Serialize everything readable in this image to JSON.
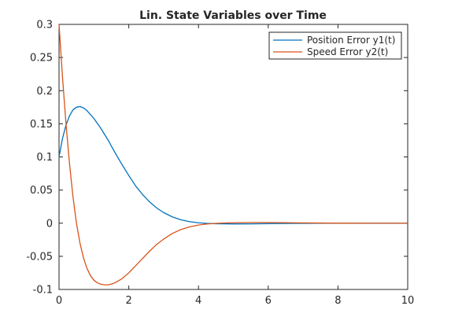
{
  "chart_data": {
    "type": "line",
    "title": "Lin. State Variables over Time",
    "xlabel": "",
    "ylabel": "",
    "xlim": [
      0,
      10
    ],
    "ylim": [
      -0.1,
      0.3
    ],
    "xticks": [
      0,
      2,
      4,
      6,
      8,
      10
    ],
    "yticks": [
      -0.1,
      -0.05,
      0,
      0.05,
      0.1,
      0.15,
      0.2,
      0.25,
      0.3
    ],
    "xtick_labels": [
      "0",
      "2",
      "4",
      "6",
      "8",
      "10"
    ],
    "ytick_labels": [
      "-0.1",
      "-0.05",
      "0",
      "0.05",
      "0.1",
      "0.15",
      "0.2",
      "0.25",
      "0.3"
    ],
    "grid": false,
    "legend_position": "top-right",
    "series": [
      {
        "name": "Position Error y1(t)",
        "color": "#0072BD",
        "x": [
          0,
          0.1,
          0.2,
          0.3,
          0.4,
          0.5,
          0.6,
          0.7,
          0.8,
          1.0,
          1.2,
          1.4,
          1.6,
          1.8,
          2.0,
          2.2,
          2.4,
          2.6,
          2.8,
          3.0,
          3.25,
          3.5,
          3.75,
          4.0,
          4.25,
          4.5,
          4.75,
          5.0,
          5.5,
          6.0,
          6.5,
          7.0,
          8.0,
          9.0,
          10.0
        ],
        "y": [
          0.1,
          0.128,
          0.148,
          0.162,
          0.171,
          0.175,
          0.176,
          0.174,
          0.17,
          0.158,
          0.143,
          0.126,
          0.107,
          0.089,
          0.072,
          0.056,
          0.043,
          0.032,
          0.023,
          0.016,
          0.0095,
          0.005,
          0.0022,
          0.0006,
          -0.0003,
          -0.0008,
          -0.001,
          -0.0011,
          -0.001,
          -0.0007,
          -0.0004,
          -0.0002,
          0.0,
          0.0,
          0.0
        ]
      },
      {
        "name": "Speed Error y2(t)",
        "color": "#D95319",
        "x": [
          0,
          0.1,
          0.2,
          0.3,
          0.4,
          0.5,
          0.6,
          0.7,
          0.8,
          0.9,
          1.0,
          1.1,
          1.2,
          1.3,
          1.4,
          1.5,
          1.6,
          1.8,
          2.0,
          2.2,
          2.4,
          2.6,
          2.8,
          3.0,
          3.25,
          3.5,
          3.75,
          4.0,
          4.25,
          4.5,
          4.75,
          5.0,
          5.5,
          6.0,
          6.5,
          7.0,
          8.0,
          9.0,
          10.0
        ],
        "y": [
          0.3,
          0.22,
          0.15,
          0.09,
          0.04,
          0.0,
          -0.03,
          -0.052,
          -0.068,
          -0.079,
          -0.086,
          -0.09,
          -0.092,
          -0.093,
          -0.093,
          -0.092,
          -0.09,
          -0.084,
          -0.075,
          -0.064,
          -0.053,
          -0.042,
          -0.032,
          -0.024,
          -0.0155,
          -0.0095,
          -0.0055,
          -0.0028,
          -0.0012,
          -0.0003,
          0.0003,
          0.0007,
          0.001,
          0.001,
          0.0007,
          0.0004,
          0.0001,
          0.0,
          0.0
        ]
      }
    ]
  }
}
